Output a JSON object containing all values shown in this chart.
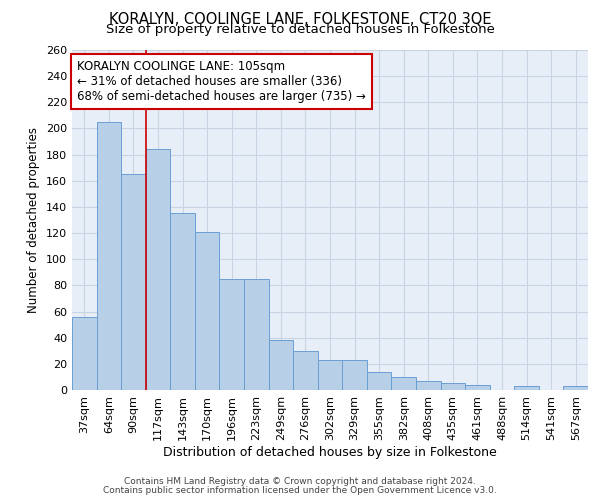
{
  "title": "KORALYN, COOLINGE LANE, FOLKESTONE, CT20 3QE",
  "subtitle": "Size of property relative to detached houses in Folkestone",
  "xlabel": "Distribution of detached houses by size in Folkestone",
  "ylabel": "Number of detached properties",
  "footnote1": "Contains HM Land Registry data © Crown copyright and database right 2024.",
  "footnote2": "Contains public sector information licensed under the Open Government Licence v3.0.",
  "categories": [
    "37sqm",
    "64sqm",
    "90sqm",
    "117sqm",
    "143sqm",
    "170sqm",
    "196sqm",
    "223sqm",
    "249sqm",
    "276sqm",
    "302sqm",
    "329sqm",
    "355sqm",
    "382sqm",
    "408sqm",
    "435sqm",
    "461sqm",
    "488sqm",
    "514sqm",
    "541sqm",
    "567sqm"
  ],
  "values": [
    56,
    205,
    165,
    184,
    135,
    121,
    85,
    85,
    38,
    30,
    23,
    23,
    14,
    10,
    7,
    5,
    4,
    0,
    3,
    0,
    3
  ],
  "bar_color": "#b8cfe8",
  "bar_edge_color": "#6a9fd4",
  "background_color": "#ffffff",
  "plot_bg_color": "#e8eef8",
  "grid_color": "#c8d4e4",
  "annotation_text": "KORALYN COOLINGE LANE: 105sqm\n← 31% of detached houses are smaller (336)\n68% of semi-detached houses are larger (735) →",
  "annotation_box_facecolor": "#ffffff",
  "annotation_box_edgecolor": "#cc0000",
  "vline_color": "#cc0000",
  "vline_x": 2.5,
  "ylim": [
    0,
    260
  ],
  "yticks": [
    0,
    20,
    40,
    60,
    80,
    100,
    120,
    140,
    160,
    180,
    200,
    220,
    240,
    260
  ],
  "title_fontsize": 10.5,
  "subtitle_fontsize": 9.5,
  "xlabel_fontsize": 9,
  "ylabel_fontsize": 8.5,
  "tick_fontsize": 8,
  "annotation_fontsize": 8.5,
  "footnote_fontsize": 6.5
}
